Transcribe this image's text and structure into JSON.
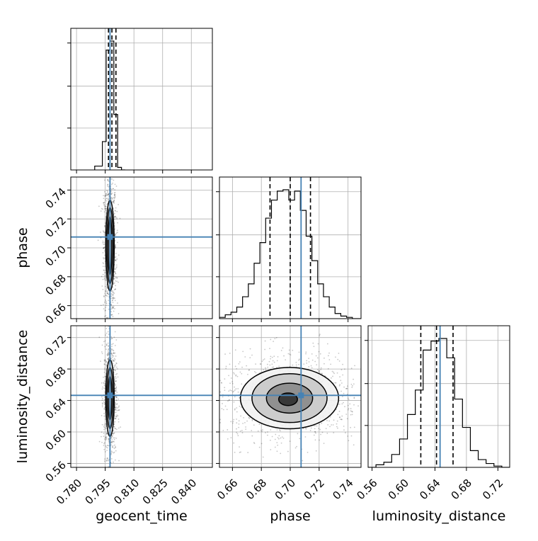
{
  "chart_data": {
    "type": "corner",
    "parameters": [
      "geocent_time",
      "phase",
      "luminosity_distance"
    ],
    "truth": {
      "geocent_time": 0.7975,
      "phase": 0.7075,
      "luminosity_distance": 0.6465
    },
    "quantiles": {
      "geocent_time": [
        0.7967,
        0.7985,
        0.8006
      ],
      "phase": [
        0.686,
        0.7,
        0.714
      ],
      "luminosity_distance": [
        0.622,
        0.642,
        0.663
      ]
    },
    "ranges": {
      "geocent_time": [
        0.777,
        0.851
      ],
      "phase": [
        0.651,
        0.749
      ],
      "luminosity_distance": [
        0.555,
        0.735
      ]
    },
    "ticks": {
      "geocent_time": {
        "values": [
          0.78,
          0.795,
          0.81,
          0.825,
          0.84
        ],
        "labels": [
          "0.780",
          "0.795",
          "0.810",
          "0.825",
          "0.840"
        ]
      },
      "phase": {
        "values": [
          0.66,
          0.68,
          0.7,
          0.72,
          0.74
        ],
        "labels": [
          "0.66",
          "0.68",
          "0.70",
          "0.72",
          "0.74"
        ]
      },
      "luminosity_distance": {
        "values": [
          0.56,
          0.6,
          0.64,
          0.68,
          0.72
        ],
        "labels": [
          "0.56",
          "0.60",
          "0.64",
          "0.68",
          "0.72"
        ]
      }
    },
    "histograms": {
      "geocent_time": {
        "edges": [
          0.7895,
          0.7935,
          0.7955,
          0.7975,
          0.7995,
          0.8015,
          0.8035,
          0.8055
        ],
        "counts": [
          0.03,
          0.22,
          0.93,
          1.0,
          0.43,
          0.02,
          0.0
        ]
      },
      "phase": {
        "edges": [
          0.651,
          0.655,
          0.659,
          0.663,
          0.667,
          0.671,
          0.675,
          0.679,
          0.683,
          0.687,
          0.691,
          0.695,
          0.699,
          0.703,
          0.707,
          0.711,
          0.715,
          0.719,
          0.723,
          0.727,
          0.731,
          0.735,
          0.739,
          0.743,
          0.749
        ],
        "counts": [
          0.01,
          0.03,
          0.05,
          0.09,
          0.17,
          0.27,
          0.43,
          0.59,
          0.78,
          0.92,
          0.99,
          1.0,
          0.92,
          0.99,
          0.84,
          0.64,
          0.45,
          0.27,
          0.17,
          0.09,
          0.04,
          0.02,
          0.01,
          0.0
        ]
      },
      "luminosity_distance": {
        "edges": [
          0.555,
          0.565,
          0.575,
          0.585,
          0.595,
          0.605,
          0.615,
          0.625,
          0.635,
          0.645,
          0.655,
          0.665,
          0.675,
          0.685,
          0.695,
          0.705,
          0.715,
          0.725,
          0.735
        ],
        "counts": [
          0.0,
          0.02,
          0.04,
          0.1,
          0.22,
          0.41,
          0.6,
          0.91,
          0.98,
          1.0,
          0.85,
          0.53,
          0.31,
          0.13,
          0.06,
          0.03,
          0.01,
          0.0
        ]
      }
    },
    "contours": {
      "geocent_time_vs_phase": [
        {
          "rx": 0.0009,
          "ry": 0.0205,
          "cx": 0.7975,
          "cy": 0.7015
        },
        {
          "rx": 0.0016,
          "ry": 0.0265,
          "cx": 0.7975,
          "cy": 0.7015
        },
        {
          "rx": 0.0022,
          "ry": 0.0315,
          "cx": 0.7975,
          "cy": 0.7015
        }
      ],
      "geocent_time_vs_luminosity_distance": [
        {
          "rx": 0.0009,
          "ry": 0.028,
          "cx": 0.7975,
          "cy": 0.643
        },
        {
          "rx": 0.0016,
          "ry": 0.039,
          "cx": 0.7975,
          "cy": 0.643
        },
        {
          "rx": 0.0022,
          "ry": 0.049,
          "cx": 0.7975,
          "cy": 0.643
        }
      ],
      "phase_vs_luminosity_distance": [
        {
          "rx": 0.0065,
          "ry": 0.008,
          "cx": 0.6985,
          "cy": 0.6415
        },
        {
          "rx": 0.016,
          "ry": 0.019,
          "cx": 0.6995,
          "cy": 0.643
        },
        {
          "rx": 0.026,
          "ry": 0.031,
          "cx": 0.6995,
          "cy": 0.643
        },
        {
          "rx": 0.034,
          "ry": 0.039,
          "cx": 0.6995,
          "cy": 0.643
        }
      ]
    },
    "xlabels": [
      "geocent_time",
      "phase",
      "luminosity_distance"
    ],
    "ylabels": [
      "phase",
      "luminosity_distance"
    ],
    "colors": {
      "truth": "#4682b4",
      "hist": "#000000",
      "quantile": "#000000",
      "grid": "#b0b0b0"
    }
  }
}
